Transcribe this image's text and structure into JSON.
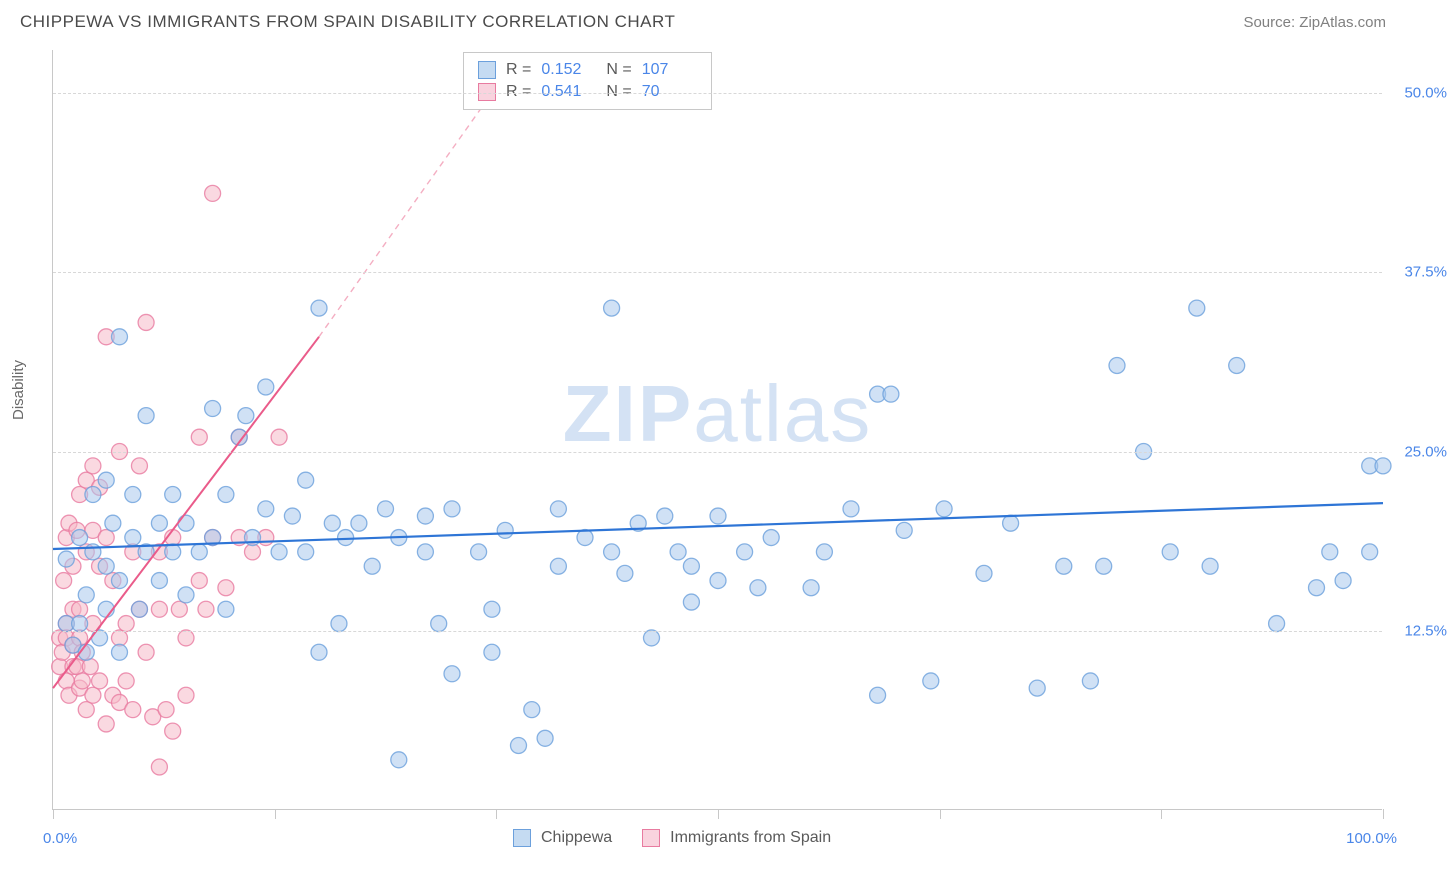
{
  "header": {
    "title": "CHIPPEWA VS IMMIGRANTS FROM SPAIN DISABILITY CORRELATION CHART",
    "source": "Source: ZipAtlas.com"
  },
  "ylabel": "Disability",
  "watermark": {
    "bold": "ZIP",
    "light": "atlas"
  },
  "chart": {
    "type": "scatter",
    "xlim": [
      0,
      100
    ],
    "ylim": [
      0,
      53
    ],
    "xtick_positions": [
      0,
      16.7,
      33.3,
      50,
      66.7,
      83.3,
      100
    ],
    "ytick_values": [
      12.5,
      25.0,
      37.5,
      50.0
    ],
    "ytick_labels": [
      "12.5%",
      "25.0%",
      "37.5%",
      "50.0%"
    ],
    "xlabel_min": "0.0%",
    "xlabel_max": "100.0%",
    "background_color": "#ffffff",
    "grid_color": "#d8d8d8",
    "marker_radius": 8,
    "marker_opacity": 0.55,
    "marker_stroke_width": 1.3,
    "series": [
      {
        "name": "Chippewa",
        "fill_color": "#a9c8ec",
        "stroke_color": "#6ca0dc",
        "swatch_fill": "#c5dbf2",
        "swatch_border": "#6ca0dc",
        "r_value": "0.152",
        "n_value": "107",
        "trend": {
          "x1": 0,
          "y1": 18.2,
          "x2": 100,
          "y2": 21.4,
          "color": "#2e75d6",
          "width": 2.2,
          "dash": ""
        },
        "points": [
          [
            1,
            17.5
          ],
          [
            1,
            13
          ],
          [
            1.5,
            11.5
          ],
          [
            2,
            19
          ],
          [
            2,
            13
          ],
          [
            2.5,
            15
          ],
          [
            2.5,
            11
          ],
          [
            3,
            22
          ],
          [
            3,
            18
          ],
          [
            3.5,
            12
          ],
          [
            4,
            23
          ],
          [
            4,
            17
          ],
          [
            4,
            14
          ],
          [
            4.5,
            20
          ],
          [
            5,
            16
          ],
          [
            5,
            11
          ],
          [
            5,
            33
          ],
          [
            6,
            19
          ],
          [
            6,
            22
          ],
          [
            6.5,
            14
          ],
          [
            7,
            27.5
          ],
          [
            7,
            18
          ],
          [
            8,
            16
          ],
          [
            8,
            20
          ],
          [
            9,
            22
          ],
          [
            9,
            18
          ],
          [
            10,
            20
          ],
          [
            10,
            15
          ],
          [
            11,
            18
          ],
          [
            12,
            28
          ],
          [
            12,
            19
          ],
          [
            13,
            22
          ],
          [
            13,
            14
          ],
          [
            14,
            26
          ],
          [
            14.5,
            27.5
          ],
          [
            15,
            19
          ],
          [
            16,
            29.5
          ],
          [
            16,
            21
          ],
          [
            17,
            18
          ],
          [
            18,
            20.5
          ],
          [
            19,
            23
          ],
          [
            19,
            18
          ],
          [
            20,
            11
          ],
          [
            20,
            35
          ],
          [
            21,
            20
          ],
          [
            21.5,
            13
          ],
          [
            22,
            19
          ],
          [
            23,
            20
          ],
          [
            24,
            17
          ],
          [
            25,
            21
          ],
          [
            26,
            19
          ],
          [
            26,
            3.5
          ],
          [
            28,
            18
          ],
          [
            28,
            20.5
          ],
          [
            29,
            13
          ],
          [
            30,
            9.5
          ],
          [
            30,
            21
          ],
          [
            32,
            18
          ],
          [
            33,
            11
          ],
          [
            33,
            14
          ],
          [
            34,
            19.5
          ],
          [
            35,
            4.5
          ],
          [
            36,
            7
          ],
          [
            37,
            5
          ],
          [
            38,
            21
          ],
          [
            38,
            17
          ],
          [
            40,
            19
          ],
          [
            42,
            18
          ],
          [
            42,
            35
          ],
          [
            43,
            16.5
          ],
          [
            44,
            20
          ],
          [
            45,
            12
          ],
          [
            46,
            20.5
          ],
          [
            47,
            18
          ],
          [
            48,
            14.5
          ],
          [
            48,
            17
          ],
          [
            50,
            20.5
          ],
          [
            50,
            16
          ],
          [
            52,
            18
          ],
          [
            53,
            15.5
          ],
          [
            54,
            19
          ],
          [
            57,
            15.5
          ],
          [
            58,
            18
          ],
          [
            60,
            21
          ],
          [
            62,
            8
          ],
          [
            62,
            29
          ],
          [
            63,
            29
          ],
          [
            64,
            19.5
          ],
          [
            66,
            9
          ],
          [
            67,
            21
          ],
          [
            70,
            16.5
          ],
          [
            72,
            20
          ],
          [
            74,
            8.5
          ],
          [
            76,
            17
          ],
          [
            78,
            9
          ],
          [
            79,
            17
          ],
          [
            80,
            31
          ],
          [
            82,
            25
          ],
          [
            84,
            18
          ],
          [
            86,
            35
          ],
          [
            87,
            17
          ],
          [
            89,
            31
          ],
          [
            92,
            13
          ],
          [
            95,
            15.5
          ],
          [
            96,
            18
          ],
          [
            97,
            16
          ],
          [
            99,
            24
          ],
          [
            99,
            18
          ],
          [
            100,
            24
          ]
        ]
      },
      {
        "name": "Immigrants from Spain",
        "fill_color": "#f6b9c8",
        "stroke_color": "#e87ba0",
        "swatch_fill": "#f9d3de",
        "swatch_border": "#e87ba0",
        "r_value": "0.541",
        "n_value": "70",
        "trend": {
          "x1": 0,
          "y1": 8.5,
          "x2": 20,
          "y2": 33,
          "color": "#ea5b8a",
          "width": 2.0,
          "dash": ""
        },
        "trend_ext": {
          "x1": 20,
          "y1": 33,
          "x2": 33,
          "y2": 50,
          "color": "#f4aec2",
          "width": 1.4,
          "dash": "6,5"
        },
        "points": [
          [
            0.5,
            12
          ],
          [
            0.5,
            10
          ],
          [
            0.7,
            11
          ],
          [
            0.8,
            16
          ],
          [
            1,
            9
          ],
          [
            1,
            19
          ],
          [
            1,
            13
          ],
          [
            1,
            12
          ],
          [
            1.2,
            20
          ],
          [
            1.2,
            8
          ],
          [
            1.5,
            17
          ],
          [
            1.5,
            10
          ],
          [
            1.5,
            14
          ],
          [
            1.5,
            11.5
          ],
          [
            1.8,
            10
          ],
          [
            1.8,
            19.5
          ],
          [
            2,
            8.5
          ],
          [
            2,
            12
          ],
          [
            2,
            14
          ],
          [
            2,
            22
          ],
          [
            2.2,
            11
          ],
          [
            2.2,
            9
          ],
          [
            2.5,
            18
          ],
          [
            2.5,
            7
          ],
          [
            2.5,
            23
          ],
          [
            2.8,
            10
          ],
          [
            3,
            24
          ],
          [
            3,
            13
          ],
          [
            3,
            19.5
          ],
          [
            3,
            8
          ],
          [
            3.5,
            17
          ],
          [
            3.5,
            22.5
          ],
          [
            3.5,
            9
          ],
          [
            4,
            6
          ],
          [
            4,
            19
          ],
          [
            4,
            33
          ],
          [
            4.5,
            8
          ],
          [
            4.5,
            16
          ],
          [
            5,
            25
          ],
          [
            5,
            7.5
          ],
          [
            5,
            12
          ],
          [
            5.5,
            13
          ],
          [
            5.5,
            9
          ],
          [
            6,
            7
          ],
          [
            6,
            18
          ],
          [
            6.5,
            24
          ],
          [
            6.5,
            14
          ],
          [
            7,
            34
          ],
          [
            7,
            11
          ],
          [
            7.5,
            6.5
          ],
          [
            8,
            18
          ],
          [
            8,
            14
          ],
          [
            8,
            3
          ],
          [
            8.5,
            7
          ],
          [
            9,
            19
          ],
          [
            9,
            5.5
          ],
          [
            9.5,
            14
          ],
          [
            10,
            8
          ],
          [
            10,
            12
          ],
          [
            11,
            16
          ],
          [
            11,
            26
          ],
          [
            11.5,
            14
          ],
          [
            12,
            19
          ],
          [
            12,
            43
          ],
          [
            13,
            15.5
          ],
          [
            14,
            19
          ],
          [
            14,
            26
          ],
          [
            15,
            18
          ],
          [
            16,
            19
          ],
          [
            17,
            26
          ]
        ]
      }
    ]
  },
  "legend_bottom": {
    "series1_label": "Chippewa",
    "series2_label": "Immigrants from Spain"
  }
}
